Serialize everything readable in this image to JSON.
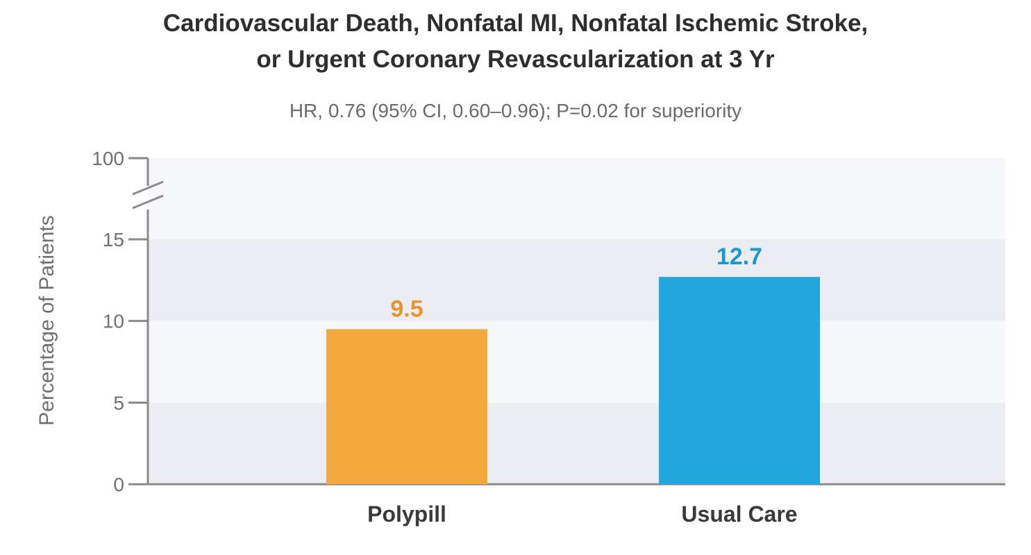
{
  "chart_data": {
    "type": "bar",
    "title_lines": [
      "Cardiovascular Death, Nonfatal MI, Nonfatal Ischemic Stroke,",
      "or Urgent Coronary Revascularization at 3 Yr"
    ],
    "subtitle": "HR, 0.76 (95% CI, 0.60–0.96); P=0.02 for superiority",
    "ylabel": "Percentage of Patients",
    "xlabel": "",
    "categories": [
      "Polypill",
      "Usual Care"
    ],
    "values": [
      9.5,
      12.7
    ],
    "value_labels": [
      "9.5",
      "12.7"
    ],
    "colors": [
      "#f4a93e",
      "#1fa7de"
    ],
    "label_colors": [
      "#e8942a",
      "#1b98d4"
    ],
    "ylim": [
      0,
      100
    ],
    "axis_break": {
      "from": 15,
      "to": 100
    },
    "yticks": [
      0,
      5,
      10,
      15,
      100
    ],
    "ytick_labels": [
      "0",
      "5",
      "10",
      "15",
      "100"
    ],
    "grid": "alternating horizontal bands",
    "band_colors": [
      "#ebedf2",
      "#f6f7fa"
    ],
    "legend": "none"
  }
}
